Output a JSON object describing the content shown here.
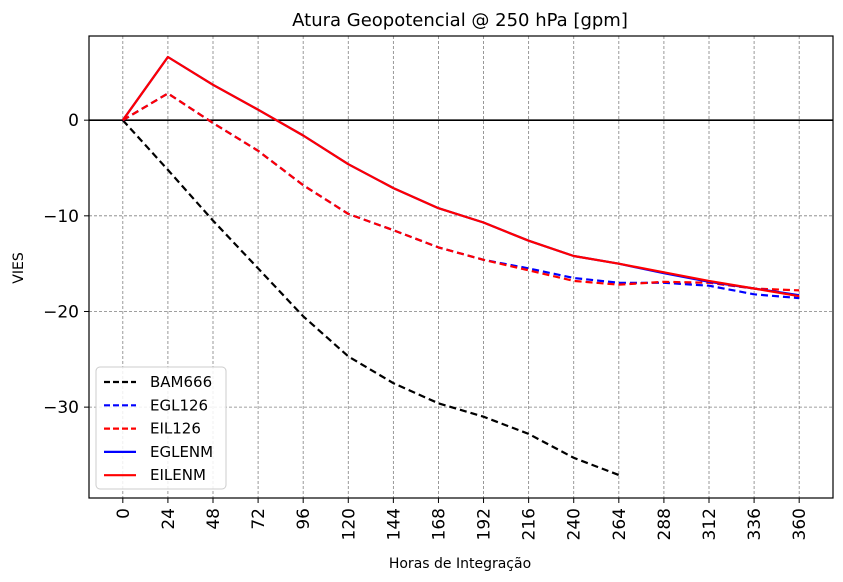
{
  "chart_data": {
    "type": "line",
    "title": "Atura Geopotencial @ 250 hPa [gpm]",
    "xlabel": "Horas de Integração",
    "ylabel": "VIES",
    "x": [
      0,
      24,
      48,
      72,
      96,
      120,
      144,
      168,
      192,
      216,
      240,
      264,
      288,
      312,
      336,
      360
    ],
    "xticks": [
      "0",
      "24",
      "48",
      "72",
      "96",
      "120",
      "144",
      "168",
      "192",
      "216",
      "240",
      "264",
      "288",
      "312",
      "336",
      "360"
    ],
    "yticks": [
      0,
      -10,
      -20,
      -30
    ],
    "ytick_labels": [
      "0",
      "−10",
      "−20",
      "−30"
    ],
    "xlim": [
      -18,
      378
    ],
    "ylim": [
      -39.5,
      8.8
    ],
    "grid": true,
    "legend_position": "lower-left",
    "series": [
      {
        "name": "BAM666",
        "color": "#000000",
        "style": "dashed",
        "x": [
          0,
          24,
          48,
          72,
          96,
          120,
          144,
          168,
          192,
          216,
          240,
          264
        ],
        "values": [
          0,
          -5.2,
          -10.5,
          -15.5,
          -20.5,
          -24.7,
          -27.5,
          -29.6,
          -31.0,
          -32.8,
          -35.3,
          -37.1
        ]
      },
      {
        "name": "EGL126",
        "color": "#0000ff",
        "style": "dashed",
        "x": [
          0,
          24,
          48,
          72,
          96,
          120,
          144,
          168,
          192,
          216,
          240,
          264,
          288,
          312,
          336,
          360
        ],
        "values": [
          0,
          2.8,
          -0.3,
          -3.2,
          -6.8,
          -9.8,
          -11.5,
          -13.3,
          -14.6,
          -15.5,
          -16.5,
          -17.0,
          -17.0,
          -17.3,
          -18.2,
          -18.6
        ]
      },
      {
        "name": "EIL126",
        "color": "#ff0000",
        "style": "dashed",
        "x": [
          0,
          24,
          48,
          72,
          96,
          120,
          144,
          168,
          192,
          216,
          240,
          264,
          288,
          312,
          336,
          360
        ],
        "values": [
          0,
          2.8,
          -0.3,
          -3.2,
          -6.8,
          -9.8,
          -11.5,
          -13.3,
          -14.6,
          -15.7,
          -16.8,
          -17.2,
          -16.9,
          -17.0,
          -17.6,
          -17.8
        ]
      },
      {
        "name": "EGLENM",
        "color": "#0000ff",
        "style": "solid",
        "x": [
          0,
          24,
          48,
          72,
          96,
          120,
          144,
          168,
          192,
          216,
          240,
          264,
          288,
          312,
          336,
          360
        ],
        "values": [
          0,
          6.6,
          3.7,
          1.1,
          -1.6,
          -4.6,
          -7.1,
          -9.2,
          -10.7,
          -12.6,
          -14.2,
          -15.0,
          -16.0,
          -16.9,
          -17.6,
          -18.3
        ]
      },
      {
        "name": "EILENM",
        "color": "#ff0000",
        "style": "solid",
        "x": [
          0,
          24,
          48,
          72,
          96,
          120,
          144,
          168,
          192,
          216,
          240,
          264,
          288,
          312,
          336,
          360
        ],
        "values": [
          0,
          6.6,
          3.7,
          1.1,
          -1.6,
          -4.6,
          -7.1,
          -9.2,
          -10.7,
          -12.6,
          -14.2,
          -15.0,
          -15.9,
          -16.8,
          -17.6,
          -18.4
        ]
      }
    ]
  }
}
